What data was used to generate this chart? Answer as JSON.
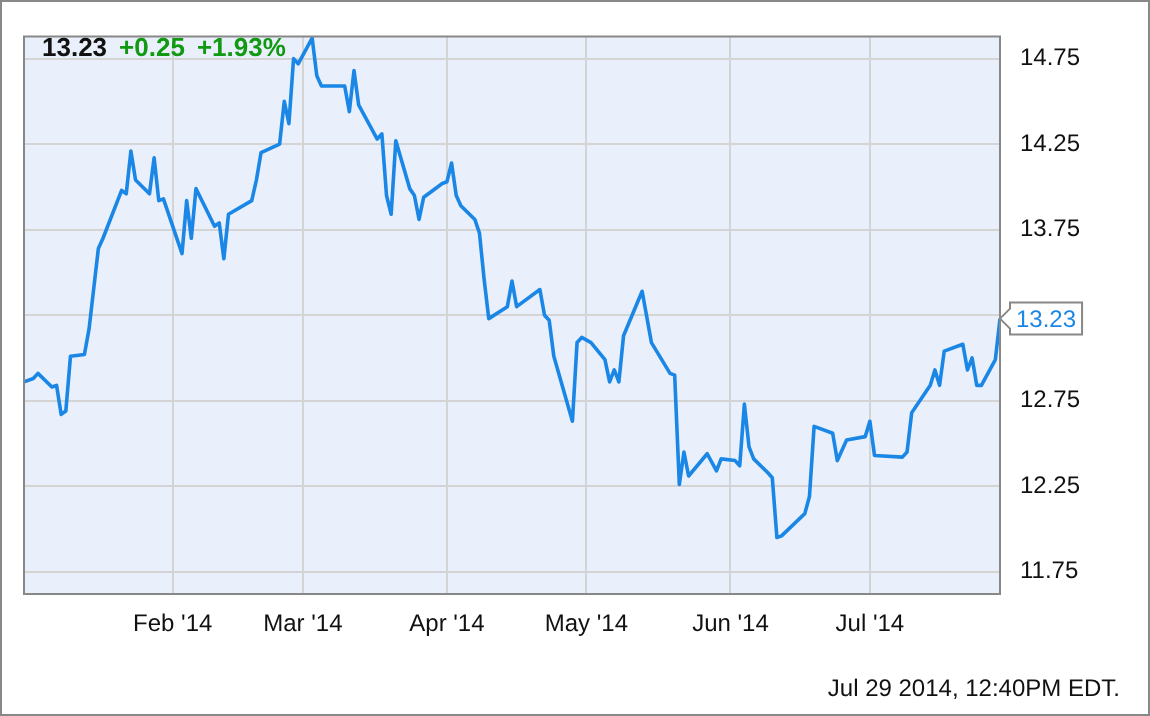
{
  "chart_data": {
    "type": "line",
    "annotations": [
      "13.23",
      "+0.25",
      "+1.93%",
      {
        "text": "13.23",
        "x": "2014-07-29",
        "y": 13.23
      },
      "Jul 29 2014, 12:40PM EDT."
    ],
    "x": [
      "2013-12-31",
      "2014-01-02",
      "2014-01-03",
      "2014-01-06",
      "2014-01-07",
      "2014-01-08",
      "2014-01-09",
      "2014-01-10",
      "2014-01-13",
      "2014-01-14",
      "2014-01-16",
      "2014-01-17",
      "2014-01-21",
      "2014-01-22",
      "2014-01-23",
      "2014-01-24",
      "2014-01-27",
      "2014-01-28",
      "2014-01-29",
      "2014-01-30",
      "2014-02-03",
      "2014-02-04",
      "2014-02-05",
      "2014-02-06",
      "2014-02-10",
      "2014-02-11",
      "2014-02-12",
      "2014-02-13",
      "2014-02-18",
      "2014-02-19",
      "2014-02-20",
      "2014-02-24",
      "2014-02-25",
      "2014-02-26",
      "2014-02-27",
      "2014-02-28",
      "2014-03-03",
      "2014-03-04",
      "2014-03-05",
      "2014-03-10",
      "2014-03-11",
      "2014-03-12",
      "2014-03-13",
      "2014-03-17",
      "2014-03-18",
      "2014-03-19",
      "2014-03-20",
      "2014-03-21",
      "2014-03-24",
      "2014-03-25",
      "2014-03-26",
      "2014-03-27",
      "2014-03-31",
      "2014-04-01",
      "2014-04-02",
      "2014-04-03",
      "2014-04-04",
      "2014-04-07",
      "2014-04-08",
      "2014-04-09",
      "2014-04-10",
      "2014-04-14",
      "2014-04-15",
      "2014-04-16",
      "2014-04-21",
      "2014-04-22",
      "2014-04-23",
      "2014-04-24",
      "2014-04-28",
      "2014-04-29",
      "2014-04-30",
      "2014-05-02",
      "2014-05-05",
      "2014-05-06",
      "2014-05-07",
      "2014-05-08",
      "2014-05-09",
      "2014-05-13",
      "2014-05-15",
      "2014-05-19",
      "2014-05-20",
      "2014-05-21",
      "2014-05-22",
      "2014-05-23",
      "2014-05-27",
      "2014-05-29",
      "2014-05-30",
      "2014-06-02",
      "2014-06-03",
      "2014-06-04",
      "2014-06-05",
      "2014-06-06",
      "2014-06-09",
      "2014-06-10",
      "2014-06-11",
      "2014-06-12",
      "2014-06-17",
      "2014-06-18",
      "2014-06-19",
      "2014-06-23",
      "2014-06-24",
      "2014-06-26",
      "2014-06-30",
      "2014-07-01",
      "2014-07-02",
      "2014-07-08",
      "2014-07-09",
      "2014-07-10",
      "2014-07-14",
      "2014-07-15",
      "2014-07-16",
      "2014-07-17",
      "2014-07-21",
      "2014-07-22",
      "2014-07-23",
      "2014-07-24",
      "2014-07-25",
      "2014-07-28",
      "2014-07-29"
    ],
    "series": [
      {
        "color": "#1a87e6",
        "values": [
          12.86,
          12.88,
          12.91,
          12.83,
          12.84,
          12.67,
          12.69,
          13.01,
          13.02,
          13.17,
          13.64,
          13.7,
          13.98,
          13.96,
          14.21,
          14.04,
          13.96,
          14.17,
          13.92,
          13.93,
          13.61,
          13.92,
          13.7,
          13.99,
          13.77,
          13.79,
          13.58,
          13.84,
          13.92,
          14.04,
          14.2,
          14.25,
          14.5,
          14.37,
          14.75,
          14.72,
          14.87,
          14.65,
          14.59,
          14.59,
          14.44,
          14.68,
          14.48,
          14.28,
          14.31,
          13.95,
          13.84,
          14.27,
          13.99,
          13.95,
          13.81,
          13.94,
          14.02,
          14.03,
          14.14,
          13.95,
          13.89,
          13.81,
          13.73,
          13.46,
          13.23,
          13.3,
          13.45,
          13.3,
          13.4,
          13.25,
          13.22,
          13.01,
          12.63,
          13.09,
          13.12,
          13.09,
          12.99,
          12.86,
          12.93,
          12.86,
          13.13,
          13.39,
          13.09,
          12.91,
          12.9,
          12.26,
          12.45,
          12.31,
          12.44,
          12.34,
          12.41,
          12.4,
          12.37,
          12.73,
          12.48,
          12.41,
          12.33,
          12.3,
          11.95,
          11.96,
          12.09,
          12.19,
          12.6,
          12.56,
          12.4,
          12.52,
          12.54,
          12.63,
          12.43,
          12.42,
          12.45,
          12.68,
          12.84,
          12.93,
          12.84,
          13.04,
          13.08,
          12.93,
          13.0,
          12.84,
          12.84,
          12.99,
          13.23
        ]
      }
    ],
    "xlim": [
      "2013-12-31",
      "2014-07-29"
    ],
    "xticks": [
      {
        "value": "2014-02-01",
        "label": "Feb '14"
      },
      {
        "value": "2014-03-01",
        "label": "Mar '14"
      },
      {
        "value": "2014-04-01",
        "label": "Apr '14"
      },
      {
        "value": "2014-05-01",
        "label": "May '14"
      },
      {
        "value": "2014-06-01",
        "label": "Jun '14"
      },
      {
        "value": "2014-07-01",
        "label": "Jul '14"
      }
    ],
    "ylim": [
      11.62,
      14.88
    ],
    "yticks": [
      11.75,
      12.25,
      12.75,
      {
        "value": 13.25,
        "label": null
      },
      13.75,
      14.25,
      14.75
    ],
    "grid": true,
    "legend": false,
    "marker": "none",
    "line_style": "solid"
  }
}
